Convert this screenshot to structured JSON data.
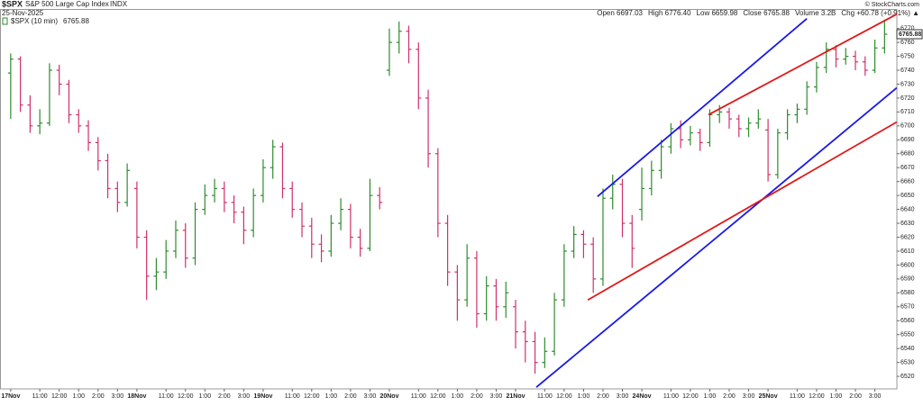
{
  "header": {
    "symbol": "$SPX",
    "name": "S&P 500 Large Cap Index",
    "exchange": "INDX",
    "date": "25-Nov-2025",
    "copyright": "© StockCharts.com",
    "stats": [
      "Open 6697.03",
      "High 6776.40",
      "Low 6659.98",
      "Close 6765.88",
      "Volume 3.2B",
      "Chg +60.78 (+0.91%) ▲"
    ]
  },
  "chart_data": {
    "type": "ohlc",
    "name": "$SPX (10 min)",
    "last": 6765.88,
    "up_color": "#2e8b2e",
    "down_color": "#d0306a",
    "x": [
      0,
      3,
      6,
      9,
      12,
      15,
      18,
      21,
      24,
      27,
      30,
      33,
      36,
      39,
      42,
      45,
      48,
      51,
      54,
      57,
      60,
      63,
      66,
      69,
      72,
      75,
      78,
      81,
      84,
      87,
      90,
      93,
      96,
      99,
      102,
      105,
      108,
      111,
      114,
      117,
      120,
      123,
      126,
      129,
      132,
      135,
      138,
      141,
      144,
      147,
      150,
      153,
      156,
      159,
      162,
      165,
      168,
      171,
      174,
      177,
      180,
      183,
      186,
      189,
      192,
      195,
      198,
      201,
      204,
      207,
      210,
      213,
      216,
      219,
      222,
      225,
      228,
      231,
      234,
      237,
      240,
      243,
      246,
      249,
      252,
      255,
      258,
      261,
      264,
      267,
      270
    ],
    "open": [
      6738,
      6748,
      6715,
      6700,
      6702,
      6740,
      6730,
      6708,
      6700,
      6688,
      6675,
      6655,
      6645,
      6655,
      6620,
      6592,
      6595,
      6610,
      6625,
      6605,
      6640,
      6650,
      6655,
      6645,
      6638,
      6625,
      6650,
      6670,
      6685,
      6655,
      6640,
      6628,
      6615,
      6610,
      6630,
      6640,
      6620,
      6612,
      6650,
      6740,
      6760,
      6768,
      6755,
      6720,
      6680,
      6630,
      6595,
      6575,
      6605,
      6565,
      6585,
      6570,
      6570,
      6552,
      6545,
      6530,
      6538,
      6575,
      6610,
      6622,
      6615,
      6590,
      6648,
      6658,
      6630,
      6640,
      6655,
      6668,
      6685,
      6698,
      6690,
      6695,
      6688,
      6708,
      6710,
      6705,
      6698,
      6702,
      6697.03,
      6665,
      6695,
      6708,
      6712,
      6728,
      6742,
      6755,
      6748,
      6750,
      6746,
      6740,
      6756
    ],
    "high": [
      6752,
      6750,
      6722,
      6712,
      6745,
      6744,
      6733,
      6712,
      6704,
      6692,
      6680,
      6660,
      6673,
      6660,
      6625,
      6605,
      6618,
      6632,
      6630,
      6645,
      6658,
      6662,
      6660,
      6650,
      6642,
      6655,
      6676,
      6690,
      6688,
      6660,
      6645,
      6634,
      6622,
      6636,
      6648,
      6644,
      6626,
      6662,
      6656,
      6770,
      6775,
      6772,
      6760,
      6726,
      6684,
      6636,
      6600,
      6615,
      6610,
      6592,
      6590,
      6588,
      6575,
      6560,
      6552,
      6548,
      6580,
      6615,
      6628,
      6625,
      6620,
      6655,
      6665,
      6662,
      6636,
      6670,
      6675,
      6690,
      6702,
      6704,
      6700,
      6698,
      6712,
      6715,
      6713,
      6708,
      6706,
      6712,
      6705,
      6698,
      6712,
      6716,
      6732,
      6746,
      6760,
      6758,
      6756,
      6754,
      6750,
      6762,
      6776.4
    ],
    "low": [
      6705,
      6710,
      6695,
      6694,
      6700,
      6722,
      6702,
      6695,
      6682,
      6668,
      6648,
      6638,
      6642,
      6612,
      6575,
      6582,
      6590,
      6605,
      6598,
      6600,
      6636,
      6645,
      6638,
      6630,
      6615,
      6620,
      6645,
      6662,
      6648,
      6634,
      6620,
      6605,
      6602,
      6606,
      6625,
      6612,
      6606,
      6610,
      6640,
      6736,
      6752,
      6745,
      6712,
      6670,
      6620,
      6585,
      6560,
      6570,
      6555,
      6560,
      6560,
      6562,
      6540,
      6530,
      6522,
      6526,
      6535,
      6570,
      6605,
      6605,
      6580,
      6585,
      6640,
      6620,
      6598,
      6632,
      6650,
      6662,
      6680,
      6684,
      6686,
      6682,
      6685,
      6702,
      6698,
      6692,
      6692,
      6698,
      6659.98,
      6662,
      6690,
      6702,
      6708,
      6724,
      6738,
      6742,
      6744,
      6740,
      6736,
      6738,
      6752
    ],
    "close": [
      6748,
      6715,
      6700,
      6702,
      6740,
      6730,
      6708,
      6700,
      6688,
      6675,
      6655,
      6645,
      6668,
      6620,
      6592,
      6595,
      6610,
      6625,
      6605,
      6640,
      6650,
      6655,
      6645,
      6638,
      6625,
      6650,
      6670,
      6685,
      6655,
      6640,
      6628,
      6615,
      6610,
      6630,
      6640,
      6620,
      6612,
      6650,
      6645,
      6760,
      6768,
      6755,
      6720,
      6680,
      6630,
      6595,
      6575,
      6605,
      6565,
      6585,
      6570,
      6580,
      6552,
      6545,
      6530,
      6538,
      6575,
      6610,
      6622,
      6615,
      6590,
      6648,
      6658,
      6630,
      6612,
      6655,
      6668,
      6685,
      6698,
      6690,
      6695,
      6688,
      6708,
      6710,
      6705,
      6698,
      6702,
      6705,
      6665,
      6695,
      6708,
      6712,
      6728,
      6742,
      6755,
      6748,
      6750,
      6746,
      6740,
      6756,
      6765.88
    ],
    "lines": [
      {
        "color": "#1a1ae6",
        "x": [
          162.4,
          273.8
        ],
        "y": [
          6512.2,
          6727.4
        ]
      },
      {
        "color": "#1a1ae6",
        "x": [
          181.3,
          246.0
        ],
        "y": [
          6649.2,
          6777.1
        ]
      },
      {
        "color": "#e01818",
        "x": [
          178.3,
          273.8
        ],
        "y": [
          6574.9,
          6702.8
        ]
      },
      {
        "color": "#e01818",
        "x": [
          215.6,
          273.8
        ],
        "y": [
          6708.0,
          6780.3
        ]
      }
    ],
    "xlim": [
      -3.3,
      273.8
    ],
    "ylim": [
      6511,
      6784
    ],
    "xticks": [
      {
        "value": 0,
        "label": "17Nov"
      },
      {
        "value": 9,
        "label": "11:00"
      },
      {
        "value": 15,
        "label": "12:00"
      },
      {
        "value": 21,
        "label": "1:00"
      },
      {
        "value": 27,
        "label": "2:00"
      },
      {
        "value": 33,
        "label": "3:00"
      },
      {
        "value": 39,
        "label": "18Nov"
      },
      {
        "value": 48,
        "label": "11:00"
      },
      {
        "value": 54,
        "label": "12:00"
      },
      {
        "value": 60,
        "label": "1:00"
      },
      {
        "value": 66,
        "label": "2:00"
      },
      {
        "value": 72,
        "label": "3:00"
      },
      {
        "value": 78,
        "label": "19Nov"
      },
      {
        "value": 87,
        "label": "11:00"
      },
      {
        "value": 93,
        "label": "12:00"
      },
      {
        "value": 99,
        "label": "1:00"
      },
      {
        "value": 105,
        "label": "2:00"
      },
      {
        "value": 111,
        "label": "3:00"
      },
      {
        "value": 117,
        "label": "20Nov"
      },
      {
        "value": 126,
        "label": "11:00"
      },
      {
        "value": 132,
        "label": "12:00"
      },
      {
        "value": 138,
        "label": "1:00"
      },
      {
        "value": 144,
        "label": "2:00"
      },
      {
        "value": 150,
        "label": "3:00"
      },
      {
        "value": 156,
        "label": "21Nov"
      },
      {
        "value": 165,
        "label": "11:00"
      },
      {
        "value": 171,
        "label": "12:00"
      },
      {
        "value": 177,
        "label": "1:00"
      },
      {
        "value": 183,
        "label": "2:00"
      },
      {
        "value": 189,
        "label": "3:00"
      },
      {
        "value": 195,
        "label": "24Nov"
      },
      {
        "value": 204,
        "label": "11:00"
      },
      {
        "value": 210,
        "label": "12:00"
      },
      {
        "value": 216,
        "label": "1:00"
      },
      {
        "value": 222,
        "label": "2:00"
      },
      {
        "value": 228,
        "label": "3:00"
      },
      {
        "value": 234,
        "label": "25Nov"
      },
      {
        "value": 243,
        "label": "11:00"
      },
      {
        "value": 249,
        "label": "12:00"
      },
      {
        "value": 255,
        "label": "1:00"
      },
      {
        "value": 261,
        "label": "2:00"
      },
      {
        "value": 267,
        "label": "3:00"
      }
    ],
    "yticks": [
      6520,
      6530,
      6540,
      6550,
      6560,
      6570,
      6580,
      6590,
      6600,
      6610,
      6620,
      6630,
      6640,
      6650,
      6660,
      6670,
      6680,
      6690,
      6700,
      6710,
      6720,
      6730,
      6740,
      6750,
      6760,
      6770
    ]
  }
}
